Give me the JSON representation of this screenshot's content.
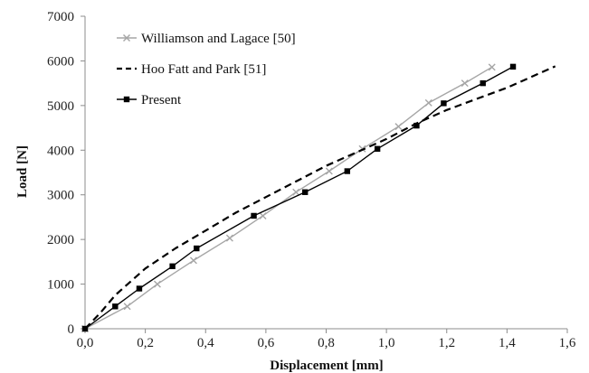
{
  "chart_data": {
    "type": "line",
    "title": "",
    "xlabel": "Displacement [mm]",
    "ylabel": "Load [N]",
    "xlim": [
      0,
      1.6
    ],
    "ylim": [
      0,
      7000
    ],
    "xticks": [
      "0,0",
      "0,2",
      "0,4",
      "0,6",
      "0,8",
      "1,0",
      "1,2",
      "1,4",
      "1,6"
    ],
    "yticks": [
      "0",
      "1000",
      "2000",
      "3000",
      "4000",
      "5000",
      "6000",
      "7000"
    ],
    "grid": false,
    "legend_position": "top-left",
    "series": [
      {
        "name": "Williamson and Lagace [50]",
        "color": "#a6a6a6",
        "line": "solid",
        "marker": "x",
        "x": [
          0.0,
          0.14,
          0.24,
          0.36,
          0.48,
          0.59,
          0.7,
          0.81,
          0.92,
          1.04,
          1.14,
          1.26,
          1.35
        ],
        "y": [
          0,
          500,
          1000,
          1530,
          2030,
          2530,
          3060,
          3530,
          4030,
          4530,
          5060,
          5500,
          5860
        ]
      },
      {
        "name": "Hoo Fatt and Park [51]",
        "color": "#000000",
        "line": "dashed",
        "marker": "none",
        "x": [
          0.0,
          0.05,
          0.1,
          0.2,
          0.3,
          0.4,
          0.5,
          0.6,
          0.7,
          0.8,
          0.9,
          1.0,
          1.1,
          1.2,
          1.3,
          1.4,
          1.5,
          1.56
        ],
        "y": [
          0,
          350,
          750,
          1350,
          1800,
          2200,
          2600,
          2950,
          3300,
          3650,
          3950,
          4250,
          4600,
          4900,
          5150,
          5400,
          5700,
          5880
        ]
      },
      {
        "name": "Present",
        "color": "#000000",
        "line": "solid",
        "marker": "square",
        "x": [
          0.0,
          0.1,
          0.18,
          0.29,
          0.37,
          0.56,
          0.73,
          0.87,
          0.97,
          1.1,
          1.19,
          1.32,
          1.42
        ],
        "y": [
          0,
          500,
          900,
          1400,
          1800,
          2530,
          3060,
          3530,
          4030,
          4550,
          5050,
          5500,
          5870
        ]
      }
    ]
  }
}
